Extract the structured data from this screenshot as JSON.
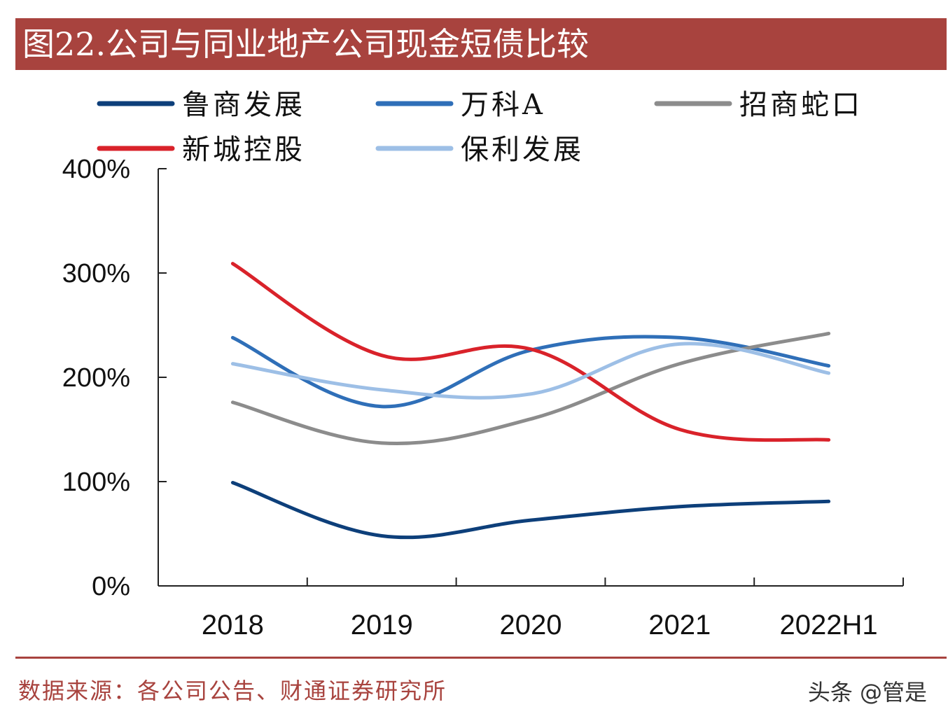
{
  "header": {
    "title": "图22.公司与同业地产公司现金短债比较"
  },
  "chart_data": {
    "type": "line",
    "title": "图22.公司与同业地产公司现金短债比较",
    "xlabel": "",
    "ylabel": "",
    "categories": [
      "2018",
      "2019",
      "2020",
      "2021",
      "2022H1"
    ],
    "yticks": [
      "0%",
      "100%",
      "200%",
      "300%",
      "400%"
    ],
    "ylim": [
      0,
      400
    ],
    "y_unit": "%",
    "legend": "top",
    "grid": false,
    "series": [
      {
        "name": "鲁商发展",
        "color": "#0d3f7a",
        "values": [
          99,
          48,
          63,
          76,
          81
        ]
      },
      {
        "name": "万科A",
        "color": "#2f6fb8",
        "values": [
          238,
          172,
          226,
          238,
          211
        ]
      },
      {
        "name": "招商蛇口",
        "color": "#8c8c8c",
        "values": [
          176,
          137,
          160,
          213,
          242
        ]
      },
      {
        "name": "新城控股",
        "color": "#d9222a",
        "values": [
          309,
          221,
          227,
          150,
          140
        ]
      },
      {
        "name": "保利发展",
        "color": "#9dbfe6",
        "values": [
          213,
          188,
          184,
          232,
          204
        ]
      }
    ]
  },
  "footer": {
    "source": "数据来源：各公司公告、财通证券研究所",
    "watermark": "头条 @管是"
  }
}
